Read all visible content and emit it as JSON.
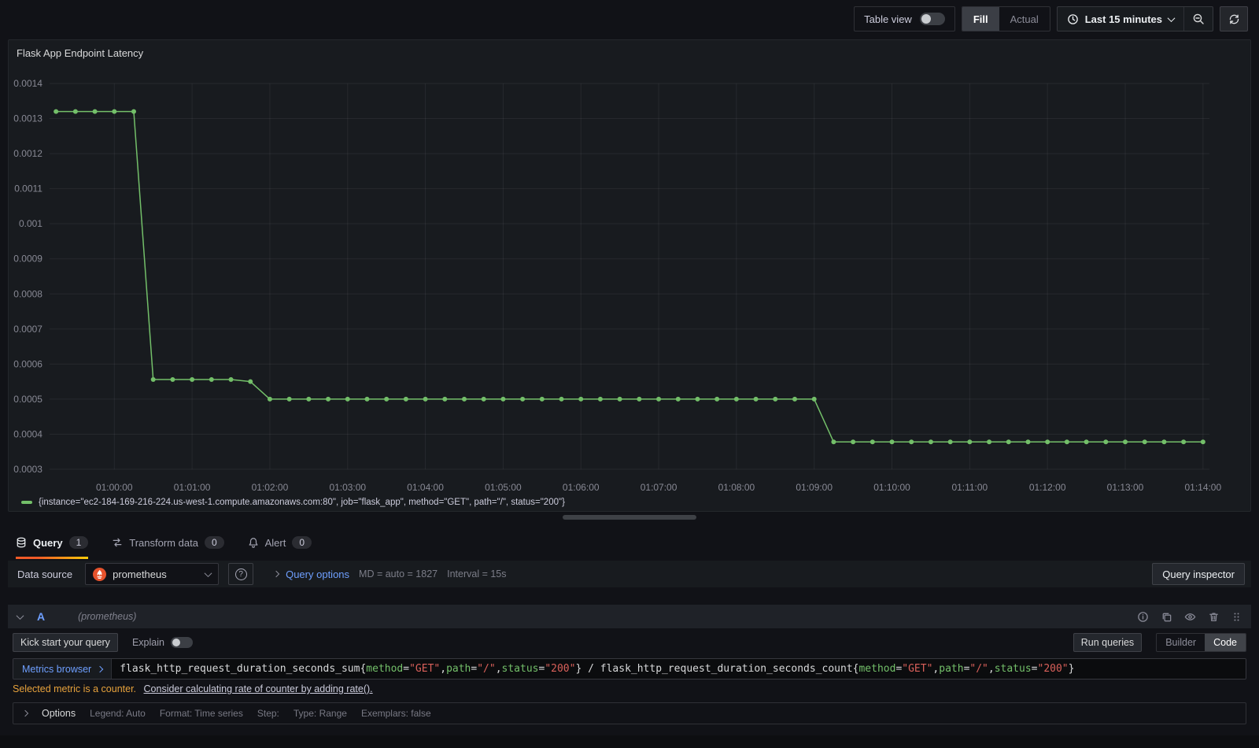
{
  "colors": {
    "series_green": "#73bf69",
    "accent_orange": "#f05a28",
    "link_blue": "#6e9fff",
    "prometheus_orange": "#e6522c",
    "warning_amber": "#e7a23c",
    "token_label": "#73bf69",
    "token_string": "#d9605a"
  },
  "icons": {
    "help_glyph": "?"
  },
  "toolbar": {
    "table_view_label": "Table view",
    "fill_label": "Fill",
    "actual_label": "Actual",
    "time_range_label": "Last 15 minutes"
  },
  "panel": {
    "title": "Flask App Endpoint Latency",
    "legend": "{instance=\"ec2-184-169-216-224.us-west-1.compute.amazonaws.com:80\", job=\"flask_app\", method=\"GET\", path=\"/\", status=\"200\"}"
  },
  "chart_data": {
    "type": "line",
    "title": "Flask App Endpoint Latency",
    "xlabel": "",
    "ylabel": "",
    "grid": true,
    "legend_position": "bottom",
    "x_domain": [
      "00:59:10",
      "01:14:05"
    ],
    "y_min": 0.0003,
    "y_max": 0.0014,
    "y_ticks": [
      0.0014,
      0.0013,
      0.0012,
      0.0011,
      0.001,
      0.0009,
      0.0008,
      0.0007,
      0.0006,
      0.0005,
      0.0004,
      0.0003
    ],
    "x_ticks": [
      "01:00:00",
      "01:01:00",
      "01:02:00",
      "01:03:00",
      "01:04:00",
      "01:05:00",
      "01:06:00",
      "01:07:00",
      "01:08:00",
      "01:09:00",
      "01:10:00",
      "01:11:00",
      "01:12:00",
      "01:13:00",
      "01:14:00"
    ],
    "series": [
      {
        "name": "{instance=\"ec2-184-169-216-224.us-west-1.compute.amazonaws.com:80\", job=\"flask_app\", method=\"GET\", path=\"/\", status=\"200\"}",
        "color": "#73bf69",
        "points": [
          [
            "00:59:15",
            0.00132
          ],
          [
            "00:59:30",
            0.00132
          ],
          [
            "00:59:45",
            0.00132
          ],
          [
            "01:00:00",
            0.00132
          ],
          [
            "01:00:15",
            0.00132
          ],
          [
            "01:00:30",
            0.000556
          ],
          [
            "01:00:45",
            0.000556
          ],
          [
            "01:01:00",
            0.000556
          ],
          [
            "01:01:15",
            0.000556
          ],
          [
            "01:01:30",
            0.000556
          ],
          [
            "01:01:45",
            0.00055
          ],
          [
            "01:02:00",
            0.0005
          ],
          [
            "01:02:15",
            0.0005
          ],
          [
            "01:02:30",
            0.0005
          ],
          [
            "01:02:45",
            0.0005
          ],
          [
            "01:03:00",
            0.0005
          ],
          [
            "01:03:15",
            0.0005
          ],
          [
            "01:03:30",
            0.0005
          ],
          [
            "01:03:45",
            0.0005
          ],
          [
            "01:04:00",
            0.0005
          ],
          [
            "01:04:15",
            0.0005
          ],
          [
            "01:04:30",
            0.0005
          ],
          [
            "01:04:45",
            0.0005
          ],
          [
            "01:05:00",
            0.0005
          ],
          [
            "01:05:15",
            0.0005
          ],
          [
            "01:05:30",
            0.0005
          ],
          [
            "01:05:45",
            0.0005
          ],
          [
            "01:06:00",
            0.0005
          ],
          [
            "01:06:15",
            0.0005
          ],
          [
            "01:06:30",
            0.0005
          ],
          [
            "01:06:45",
            0.0005
          ],
          [
            "01:07:00",
            0.0005
          ],
          [
            "01:07:15",
            0.0005
          ],
          [
            "01:07:30",
            0.0005
          ],
          [
            "01:07:45",
            0.0005
          ],
          [
            "01:08:00",
            0.0005
          ],
          [
            "01:08:15",
            0.0005
          ],
          [
            "01:08:30",
            0.0005
          ],
          [
            "01:08:45",
            0.0005
          ],
          [
            "01:09:00",
            0.0005
          ],
          [
            "01:09:15",
            0.000378
          ],
          [
            "01:09:30",
            0.000378
          ],
          [
            "01:09:45",
            0.000378
          ],
          [
            "01:10:00",
            0.000378
          ],
          [
            "01:10:15",
            0.000378
          ],
          [
            "01:10:30",
            0.000378
          ],
          [
            "01:10:45",
            0.000378
          ],
          [
            "01:11:00",
            0.000378
          ],
          [
            "01:11:15",
            0.000378
          ],
          [
            "01:11:30",
            0.000378
          ],
          [
            "01:11:45",
            0.000378
          ],
          [
            "01:12:00",
            0.000378
          ],
          [
            "01:12:15",
            0.000378
          ],
          [
            "01:12:30",
            0.000378
          ],
          [
            "01:12:45",
            0.000378
          ],
          [
            "01:13:00",
            0.000378
          ],
          [
            "01:13:15",
            0.000378
          ],
          [
            "01:13:30",
            0.000378
          ],
          [
            "01:13:45",
            0.000378
          ],
          [
            "01:14:00",
            0.000378
          ]
        ]
      }
    ]
  },
  "tabs": [
    {
      "label": "Query",
      "badge": "1"
    },
    {
      "label": "Transform data",
      "badge": "0"
    },
    {
      "label": "Alert",
      "badge": "0"
    }
  ],
  "query_toolbar": {
    "data_source_label": "Data source",
    "data_source_value": "prometheus",
    "query_options_label": "Query options",
    "md_text": "MD = auto = 1827",
    "interval_text": "Interval = 15s",
    "query_inspector_label": "Query inspector"
  },
  "query_row": {
    "ref_id": "A",
    "datasource_hint": "(prometheus)",
    "kick_start_label": "Kick start your query",
    "explain_label": "Explain",
    "run_queries_label": "Run queries",
    "builder_label": "Builder",
    "code_label": "Code",
    "metrics_browser_label": "Metrics browser",
    "warning_text": "Selected metric is a counter.",
    "warning_link": "Consider calculating rate of counter by adding rate().",
    "query_parts": [
      {
        "text": "flask_http_request_duration_seconds_sum{",
        "type": "plain"
      },
      {
        "text": "method",
        "type": "label"
      },
      {
        "text": "=",
        "type": "plain"
      },
      {
        "text": "\"GET\"",
        "type": "string"
      },
      {
        "text": ",",
        "type": "plain"
      },
      {
        "text": "path",
        "type": "label"
      },
      {
        "text": "=",
        "type": "plain"
      },
      {
        "text": "\"/\"",
        "type": "string"
      },
      {
        "text": ",",
        "type": "plain"
      },
      {
        "text": "status",
        "type": "label"
      },
      {
        "text": "=",
        "type": "plain"
      },
      {
        "text": "\"200\"",
        "type": "string"
      },
      {
        "text": "} / flask_http_request_duration_seconds_count{",
        "type": "plain"
      },
      {
        "text": "method",
        "type": "label"
      },
      {
        "text": "=",
        "type": "plain"
      },
      {
        "text": "\"GET\"",
        "type": "string"
      },
      {
        "text": ",",
        "type": "plain"
      },
      {
        "text": "path",
        "type": "label"
      },
      {
        "text": "=",
        "type": "plain"
      },
      {
        "text": "\"/\"",
        "type": "string"
      },
      {
        "text": ",",
        "type": "plain"
      },
      {
        "text": "status",
        "type": "label"
      },
      {
        "text": "=",
        "type": "plain"
      },
      {
        "text": "\"200\"",
        "type": "string"
      },
      {
        "text": "}",
        "type": "plain"
      }
    ],
    "options": {
      "title": "Options",
      "items": [
        "Legend: Auto",
        "Format: Time series",
        "Step:",
        "Type: Range",
        "Exemplars: false"
      ]
    }
  }
}
